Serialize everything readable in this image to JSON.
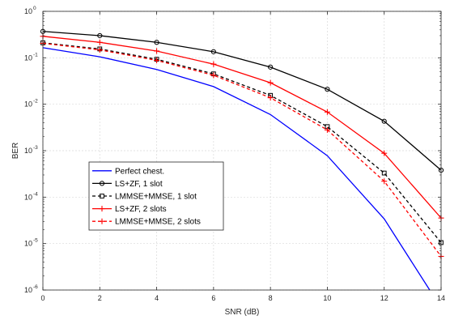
{
  "chart_data": {
    "type": "line",
    "title": "",
    "xlabel": "SNR (dB)",
    "ylabel": "BER",
    "xlim": [
      0,
      14
    ],
    "ylim": [
      1e-06,
      1
    ],
    "y_scale": "log",
    "grid": true,
    "legend_placement": "lower-left",
    "x_ticks": [
      0,
      2,
      4,
      6,
      8,
      10,
      12,
      14
    ],
    "x_tick_labels": [
      "0",
      "2",
      "4",
      "6",
      "8",
      "10",
      "12",
      "14"
    ],
    "y_ticks": [
      1e-06,
      1e-05,
      0.0001,
      0.001,
      0.01,
      0.1,
      1
    ],
    "y_tick_labels": [
      {
        "base": "10",
        "exp": "-6"
      },
      {
        "base": "10",
        "exp": "-5"
      },
      {
        "base": "10",
        "exp": "-4"
      },
      {
        "base": "10",
        "exp": "-3"
      },
      {
        "base": "10",
        "exp": "-2"
      },
      {
        "base": "10",
        "exp": "-1"
      },
      {
        "base": "10",
        "exp": "0"
      }
    ],
    "series": [
      {
        "name": "Perfect chest.",
        "color": "#0000ff",
        "dash": "solid",
        "marker": "none",
        "x": [
          0,
          2,
          4,
          6,
          8,
          10,
          12,
          13.6
        ],
        "y": [
          0.165,
          0.105,
          0.056,
          0.024,
          0.006,
          0.00078,
          3.4e-05,
          1e-06
        ]
      },
      {
        "name": "LS+ZF, 1 slot",
        "color": "#000000",
        "dash": "solid",
        "marker": "circle",
        "x": [
          0,
          2,
          4,
          6,
          8,
          10,
          12,
          14
        ],
        "y": [
          0.37,
          0.3,
          0.215,
          0.135,
          0.063,
          0.021,
          0.0043,
          0.00038
        ]
      },
      {
        "name": "LMMSE+MMSE, 1 slot",
        "color": "#000000",
        "dash": "dashed",
        "marker": "square",
        "x": [
          0,
          2,
          4,
          6,
          8,
          10,
          12,
          14
        ],
        "y": [
          0.21,
          0.155,
          0.093,
          0.045,
          0.0155,
          0.0033,
          0.00033,
          1.05e-05
        ]
      },
      {
        "name": "LS+ZF, 2 slots",
        "color": "#ff0000",
        "dash": "solid",
        "marker": "plus",
        "x": [
          0,
          2,
          4,
          6,
          8,
          10,
          12,
          14
        ],
        "y": [
          0.29,
          0.215,
          0.14,
          0.073,
          0.029,
          0.0068,
          0.00088,
          3.55e-05
        ]
      },
      {
        "name": "LMMSE+MMSE, 2 slots",
        "color": "#ff0000",
        "dash": "dashed",
        "marker": "plus",
        "x": [
          0,
          2,
          4,
          6,
          8,
          10,
          12,
          14
        ],
        "y": [
          0.205,
          0.148,
          0.088,
          0.042,
          0.0138,
          0.0028,
          0.00022,
          5.3e-06
        ]
      }
    ]
  }
}
